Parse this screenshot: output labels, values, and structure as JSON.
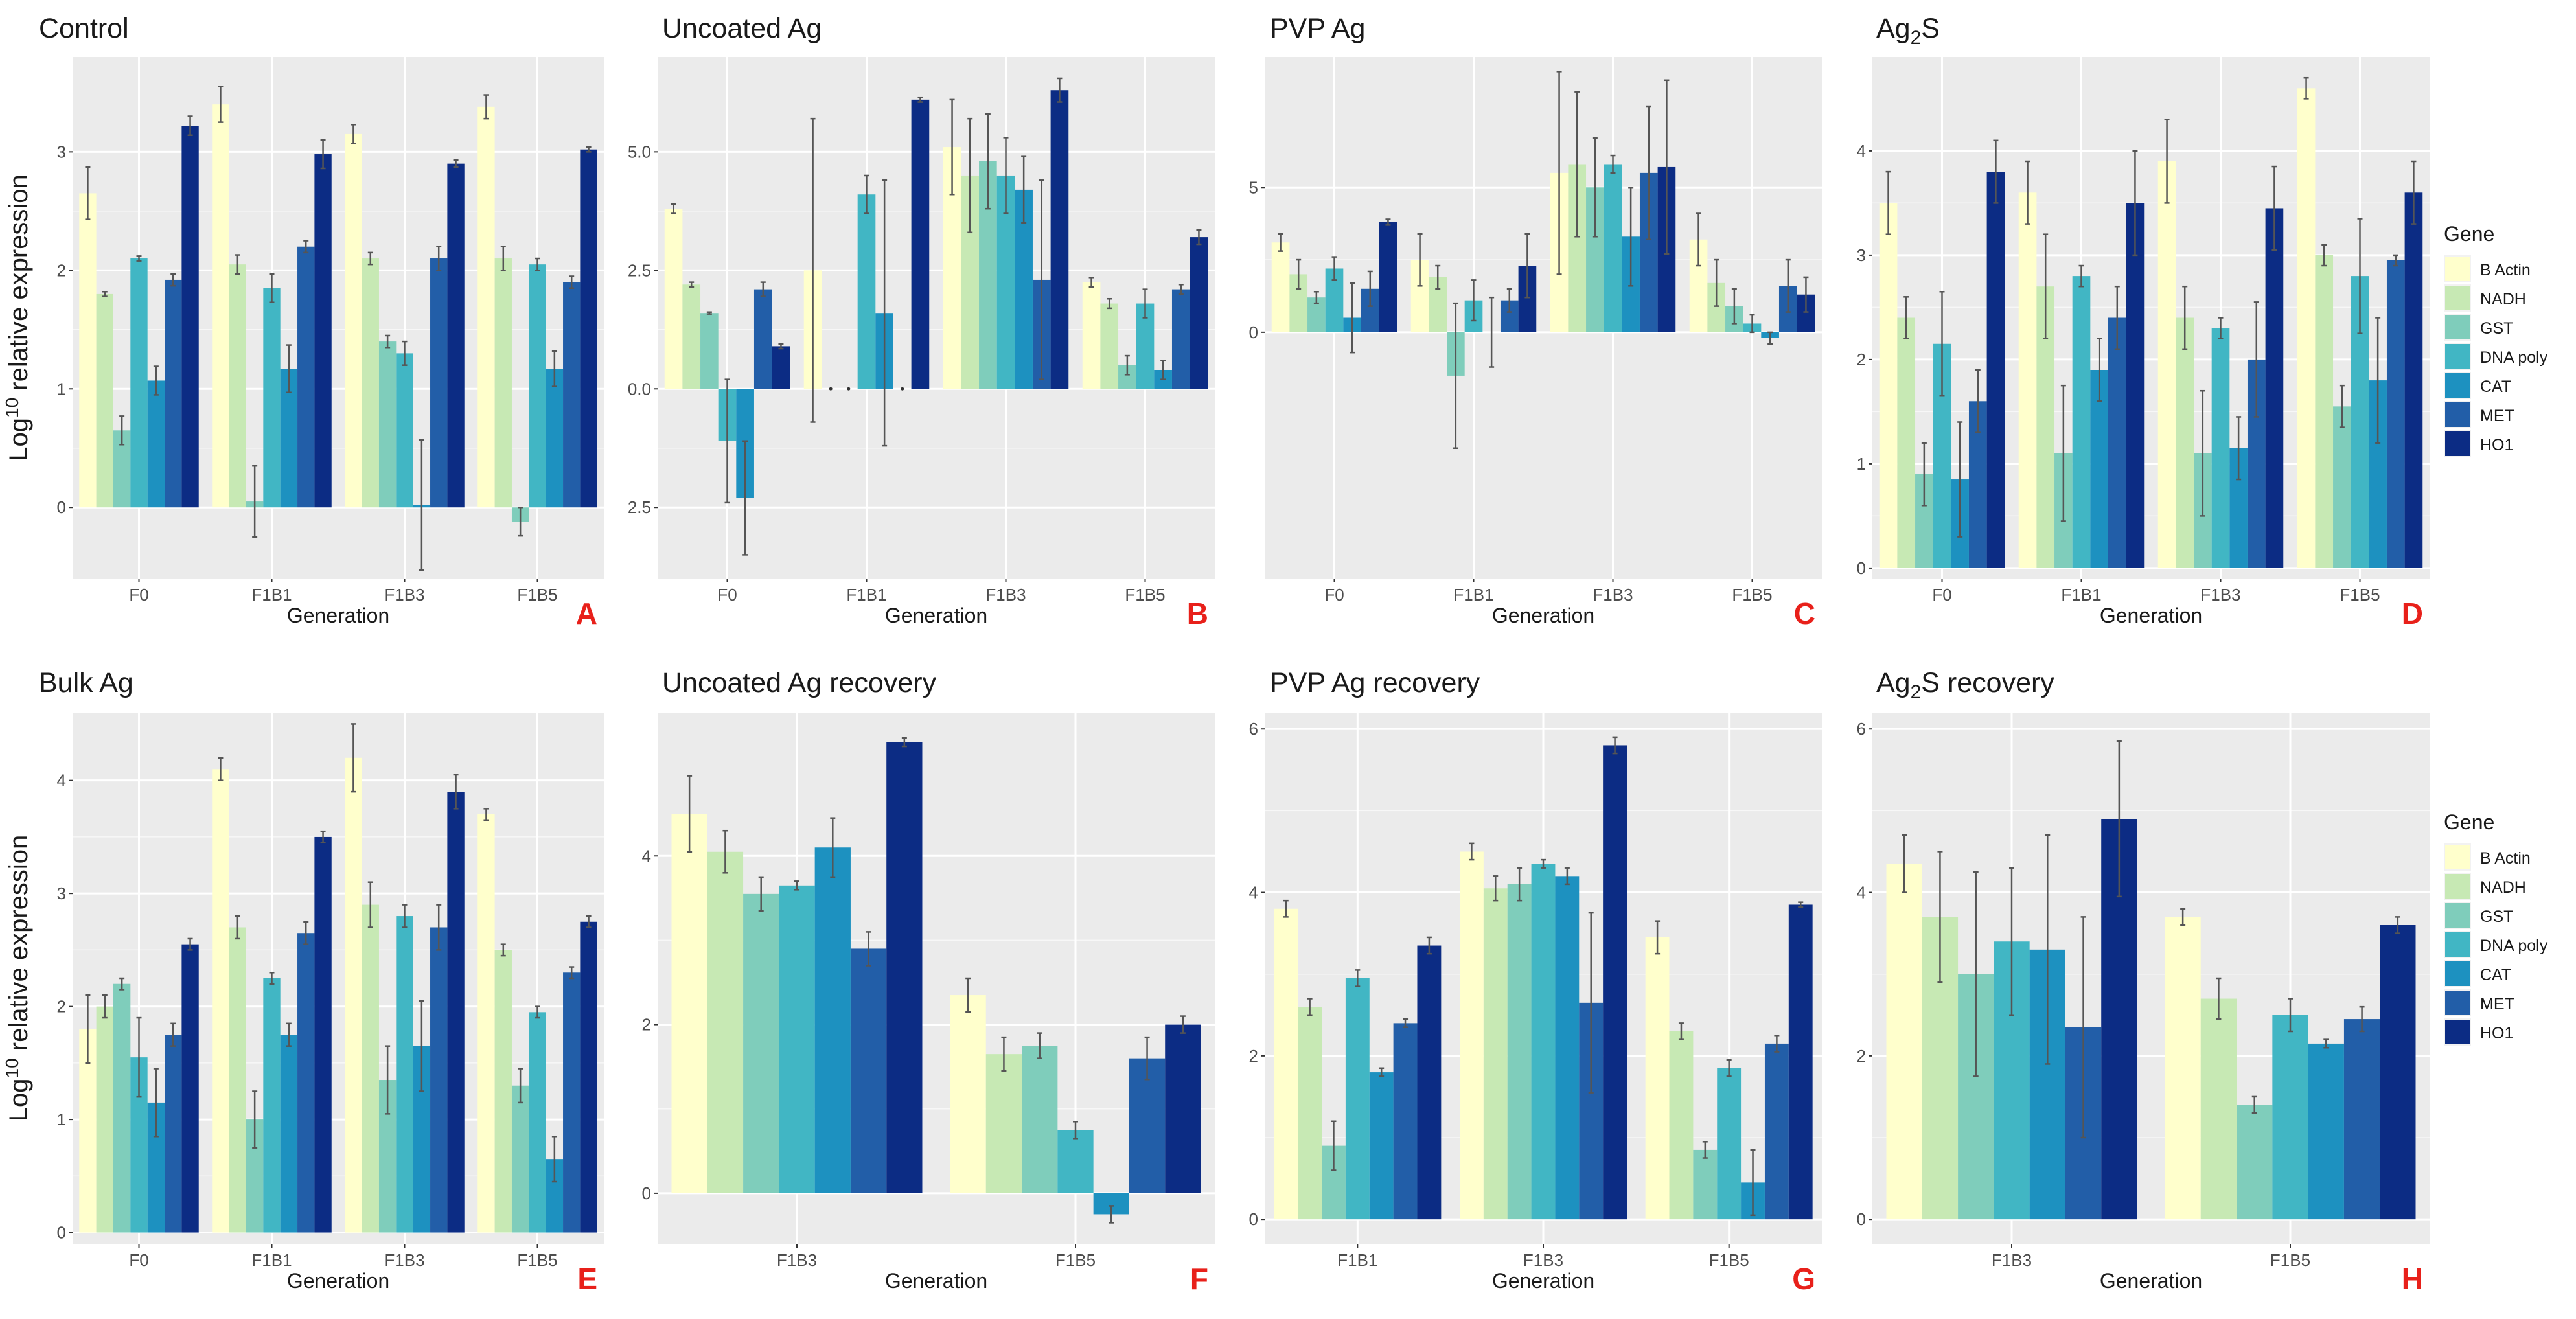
{
  "y_axis_label": {
    "prefix": "Log",
    "sup": "10",
    "rest": " relative expression"
  },
  "legend": {
    "title": "Gene",
    "genes": [
      "B Actin",
      "NADH",
      "GST",
      "DNA poly",
      "CAT",
      "MET",
      "HO1"
    ],
    "colors": [
      "#ffffcc",
      "#c7e9b4",
      "#7fcdbb",
      "#41b6c4",
      "#1d91c0",
      "#225ea8",
      "#0c2c84"
    ]
  },
  "chart_data": [
    {
      "type": "bar",
      "letter": "A",
      "title": "Control",
      "xlabel": "Generation",
      "ylabel": "Log10 relative expression",
      "categories": [
        "F0",
        "F1B1",
        "F1B3",
        "F1B5"
      ],
      "ylim": [
        -0.6,
        3.8
      ],
      "yticks": [
        0,
        1,
        2,
        3
      ],
      "ytick_labels": [
        "0",
        "1",
        "2",
        "3"
      ],
      "series": [
        {
          "name": "B Actin",
          "values": [
            2.65,
            3.4,
            3.15,
            3.38
          ],
          "errors": [
            0.22,
            0.15,
            0.08,
            0.1
          ]
        },
        {
          "name": "NADH",
          "values": [
            1.8,
            2.05,
            2.1,
            2.1
          ],
          "errors": [
            0.02,
            0.08,
            0.05,
            0.1
          ]
        },
        {
          "name": "GST",
          "values": [
            0.65,
            0.05,
            1.4,
            -0.12
          ],
          "errors": [
            0.12,
            0.3,
            0.05,
            0.12
          ]
        },
        {
          "name": "DNA poly",
          "values": [
            2.1,
            1.85,
            1.3,
            2.05
          ],
          "errors": [
            0.02,
            0.12,
            0.1,
            0.05
          ]
        },
        {
          "name": "CAT",
          "values": [
            1.07,
            1.17,
            0.02,
            1.17
          ],
          "errors": [
            0.12,
            0.2,
            0.55,
            0.15
          ]
        },
        {
          "name": "MET",
          "values": [
            1.92,
            2.2,
            2.1,
            1.9
          ],
          "errors": [
            0.05,
            0.05,
            0.1,
            0.05
          ]
        },
        {
          "name": "HO1",
          "values": [
            3.22,
            2.98,
            2.9,
            3.02
          ],
          "errors": [
            0.08,
            0.12,
            0.03,
            0.02
          ]
        }
      ]
    },
    {
      "type": "bar",
      "letter": "B",
      "title": "Uncoated Ag",
      "xlabel": "Generation",
      "ylabel": "",
      "categories": [
        "F0",
        "F1B1",
        "F1B3",
        "F1B5"
      ],
      "ylim": [
        -4,
        7
      ],
      "yticks": [
        -2.5,
        0,
        2.5,
        5
      ],
      "ytick_labels": [
        "2.5",
        "0.0",
        "2.5",
        "5.0"
      ],
      "series": [
        {
          "name": "B Actin",
          "values": [
            3.8,
            2.5,
            5.1,
            2.25
          ],
          "errors": [
            0.1,
            3.2,
            1.0,
            0.1
          ]
        },
        {
          "name": "NADH",
          "values": [
            2.2,
            0.0,
            4.5,
            1.8
          ],
          "errors": [
            0.05,
            0.0,
            1.2,
            0.1
          ]
        },
        {
          "name": "GST",
          "values": [
            1.6,
            0.0,
            4.8,
            0.5
          ],
          "errors": [
            0.02,
            0.0,
            1.0,
            0.2
          ]
        },
        {
          "name": "DNA poly",
          "values": [
            -1.1,
            4.1,
            4.5,
            1.8
          ],
          "errors": [
            1.3,
            0.4,
            0.8,
            0.3
          ]
        },
        {
          "name": "CAT",
          "values": [
            -2.3,
            1.6,
            4.2,
            0.4
          ],
          "errors": [
            1.2,
            2.8,
            0.7,
            0.2
          ]
        },
        {
          "name": "MET",
          "values": [
            2.1,
            0.0,
            2.3,
            2.1
          ],
          "errors": [
            0.15,
            0.0,
            2.1,
            0.1
          ]
        },
        {
          "name": "HO1",
          "values": [
            0.9,
            6.1,
            6.3,
            3.2
          ],
          "errors": [
            0.05,
            0.05,
            0.25,
            0.15
          ]
        }
      ]
    },
    {
      "type": "bar",
      "letter": "C",
      "title": "PVP Ag",
      "xlabel": "Generation",
      "ylabel": "",
      "categories": [
        "F0",
        "F1B1",
        "F1B3",
        "F1B5"
      ],
      "ylim": [
        -8.5,
        9.5
      ],
      "yticks": [
        0,
        5
      ],
      "ytick_labels": [
        "0",
        "5"
      ],
      "series": [
        {
          "name": "B Actin",
          "values": [
            3.1,
            2.5,
            5.5,
            3.2
          ],
          "errors": [
            0.3,
            0.9,
            3.5,
            0.9
          ]
        },
        {
          "name": "NADH",
          "values": [
            2.0,
            1.9,
            5.8,
            1.7
          ],
          "errors": [
            0.5,
            0.4,
            2.5,
            0.8
          ]
        },
        {
          "name": "GST",
          "values": [
            1.2,
            -1.5,
            5.0,
            0.9
          ],
          "errors": [
            0.2,
            2.5,
            1.7,
            0.6
          ]
        },
        {
          "name": "DNA poly",
          "values": [
            2.2,
            1.1,
            5.8,
            0.3
          ],
          "errors": [
            0.4,
            0.7,
            0.3,
            0.3
          ]
        },
        {
          "name": "CAT",
          "values": [
            0.5,
            0.0,
            3.3,
            -0.2
          ],
          "errors": [
            1.2,
            1.2,
            1.7,
            0.2
          ]
        },
        {
          "name": "MET",
          "values": [
            1.5,
            1.1,
            5.5,
            1.6
          ],
          "errors": [
            0.6,
            0.4,
            2.3,
            0.9
          ]
        },
        {
          "name": "HO1",
          "values": [
            3.8,
            2.3,
            5.7,
            1.3
          ],
          "errors": [
            0.1,
            1.1,
            3.0,
            0.6
          ]
        }
      ]
    },
    {
      "type": "bar",
      "letter": "D",
      "title": "Ag2S",
      "title_main": "Ag",
      "title_sub": "2",
      "title_rest": "S",
      "xlabel": "Generation",
      "ylabel": "",
      "categories": [
        "F0",
        "F1B1",
        "F1B3",
        "F1B5"
      ],
      "ylim": [
        -0.1,
        4.9
      ],
      "yticks": [
        0,
        1,
        2,
        3,
        4
      ],
      "ytick_labels": [
        "0",
        "1",
        "2",
        "3",
        "4"
      ],
      "series": [
        {
          "name": "B Actin",
          "values": [
            3.5,
            3.6,
            3.9,
            4.6
          ],
          "errors": [
            0.3,
            0.3,
            0.4,
            0.1
          ]
        },
        {
          "name": "NADH",
          "values": [
            2.4,
            2.7,
            2.4,
            3.0
          ],
          "errors": [
            0.2,
            0.5,
            0.3,
            0.1
          ]
        },
        {
          "name": "GST",
          "values": [
            0.9,
            1.1,
            1.1,
            1.55
          ],
          "errors": [
            0.3,
            0.65,
            0.6,
            0.2
          ]
        },
        {
          "name": "DNA poly",
          "values": [
            2.15,
            2.8,
            2.3,
            2.8
          ],
          "errors": [
            0.5,
            0.1,
            0.1,
            0.55
          ]
        },
        {
          "name": "CAT",
          "values": [
            0.85,
            1.9,
            1.15,
            1.8
          ],
          "errors": [
            0.55,
            0.3,
            0.3,
            0.6
          ]
        },
        {
          "name": "MET",
          "values": [
            1.6,
            2.4,
            2.0,
            2.95
          ],
          "errors": [
            0.3,
            0.3,
            0.55,
            0.05
          ]
        },
        {
          "name": "HO1",
          "values": [
            3.8,
            3.5,
            3.45,
            3.6
          ],
          "errors": [
            0.3,
            0.5,
            0.4,
            0.3
          ]
        }
      ]
    },
    {
      "type": "bar",
      "letter": "E",
      "title": "Bulk Ag",
      "xlabel": "Generation",
      "ylabel": "Log10 relative expression",
      "categories": [
        "F0",
        "F1B1",
        "F1B3",
        "F1B5"
      ],
      "ylim": [
        -0.1,
        4.6
      ],
      "yticks": [
        0,
        1,
        2,
        3,
        4
      ],
      "ytick_labels": [
        "0",
        "1",
        "2",
        "3",
        "4"
      ],
      "series": [
        {
          "name": "B Actin",
          "values": [
            1.8,
            4.1,
            4.2,
            3.7
          ],
          "errors": [
            0.3,
            0.1,
            0.3,
            0.05
          ]
        },
        {
          "name": "NADH",
          "values": [
            2.0,
            2.7,
            2.9,
            2.5
          ],
          "errors": [
            0.1,
            0.1,
            0.2,
            0.05
          ]
        },
        {
          "name": "GST",
          "values": [
            2.2,
            1.0,
            1.35,
            1.3
          ],
          "errors": [
            0.05,
            0.25,
            0.3,
            0.15
          ]
        },
        {
          "name": "DNA poly",
          "values": [
            1.55,
            2.25,
            2.8,
            1.95
          ],
          "errors": [
            0.35,
            0.05,
            0.1,
            0.05
          ]
        },
        {
          "name": "CAT",
          "values": [
            1.15,
            1.75,
            1.65,
            0.65
          ],
          "errors": [
            0.3,
            0.1,
            0.4,
            0.2
          ]
        },
        {
          "name": "MET",
          "values": [
            1.75,
            2.65,
            2.7,
            2.3
          ],
          "errors": [
            0.1,
            0.1,
            0.2,
            0.05
          ]
        },
        {
          "name": "HO1",
          "values": [
            2.55,
            3.5,
            3.9,
            2.75
          ],
          "errors": [
            0.05,
            0.05,
            0.15,
            0.05
          ]
        }
      ]
    },
    {
      "type": "bar",
      "letter": "F",
      "title": "Uncoated Ag recovery",
      "xlabel": "Generation",
      "ylabel": "",
      "categories": [
        "F1B3",
        "F1B5"
      ],
      "ylim": [
        -0.6,
        5.7
      ],
      "yticks": [
        0,
        2,
        4
      ],
      "ytick_labels": [
        "0",
        "2",
        "4"
      ],
      "series": [
        {
          "name": "B Actin",
          "values": [
            4.5,
            2.35
          ],
          "errors": [
            0.45,
            0.2
          ]
        },
        {
          "name": "NADH",
          "values": [
            4.05,
            1.65
          ],
          "errors": [
            0.25,
            0.2
          ]
        },
        {
          "name": "GST",
          "values": [
            3.55,
            1.75
          ],
          "errors": [
            0.2,
            0.15
          ]
        },
        {
          "name": "DNA poly",
          "values": [
            3.65,
            0.75
          ],
          "errors": [
            0.05,
            0.1
          ]
        },
        {
          "name": "CAT",
          "values": [
            4.1,
            -0.25
          ],
          "errors": [
            0.35,
            0.1
          ]
        },
        {
          "name": "MET",
          "values": [
            2.9,
            1.6
          ],
          "errors": [
            0.2,
            0.25
          ]
        },
        {
          "name": "HO1",
          "values": [
            5.35,
            2.0
          ],
          "errors": [
            0.05,
            0.1
          ]
        }
      ]
    },
    {
      "type": "bar",
      "letter": "G",
      "title": "PVP Ag recovery",
      "xlabel": "Generation",
      "ylabel": "",
      "categories": [
        "F1B1",
        "F1B3",
        "F1B5"
      ],
      "ylim": [
        -0.3,
        6.2
      ],
      "yticks": [
        0,
        2,
        4,
        6
      ],
      "ytick_labels": [
        "0",
        "2",
        "4",
        "6"
      ],
      "series": [
        {
          "name": "B Actin",
          "values": [
            3.8,
            4.5,
            3.45
          ],
          "errors": [
            0.1,
            0.1,
            0.2
          ]
        },
        {
          "name": "NADH",
          "values": [
            2.6,
            4.05,
            2.3
          ],
          "errors": [
            0.1,
            0.15,
            0.1
          ]
        },
        {
          "name": "GST",
          "values": [
            0.9,
            4.1,
            0.85
          ],
          "errors": [
            0.3,
            0.2,
            0.1
          ]
        },
        {
          "name": "DNA poly",
          "values": [
            2.95,
            4.35,
            1.85
          ],
          "errors": [
            0.1,
            0.05,
            0.1
          ]
        },
        {
          "name": "CAT",
          "values": [
            1.8,
            4.2,
            0.45
          ],
          "errors": [
            0.05,
            0.1,
            0.4
          ]
        },
        {
          "name": "MET",
          "values": [
            2.4,
            2.65,
            2.15
          ],
          "errors": [
            0.05,
            1.1,
            0.1
          ]
        },
        {
          "name": "HO1",
          "values": [
            3.35,
            5.8,
            3.85
          ],
          "errors": [
            0.1,
            0.1,
            0.03
          ]
        }
      ]
    },
    {
      "type": "bar",
      "letter": "H",
      "title": "Ag2S recovery",
      "title_main": "Ag",
      "title_sub": "2",
      "title_rest": "S recovery",
      "xlabel": "Generation",
      "ylabel": "",
      "categories": [
        "F1B3",
        "F1B5"
      ],
      "ylim": [
        -0.3,
        6.2
      ],
      "yticks": [
        0,
        2,
        4,
        6
      ],
      "ytick_labels": [
        "0",
        "2",
        "4",
        "6"
      ],
      "series": [
        {
          "name": "B Actin",
          "values": [
            4.35,
            3.7
          ],
          "errors": [
            0.35,
            0.1
          ]
        },
        {
          "name": "NADH",
          "values": [
            3.7,
            2.7
          ],
          "errors": [
            0.8,
            0.25
          ]
        },
        {
          "name": "GST",
          "values": [
            3.0,
            1.4
          ],
          "errors": [
            1.25,
            0.1
          ]
        },
        {
          "name": "DNA poly",
          "values": [
            3.4,
            2.5
          ],
          "errors": [
            0.9,
            0.2
          ]
        },
        {
          "name": "CAT",
          "values": [
            3.3,
            2.15
          ],
          "errors": [
            1.4,
            0.05
          ]
        },
        {
          "name": "MET",
          "values": [
            2.35,
            2.45
          ],
          "errors": [
            1.35,
            0.15
          ]
        },
        {
          "name": "HO1",
          "values": [
            4.9,
            3.6
          ],
          "errors": [
            0.95,
            0.1
          ]
        }
      ]
    }
  ]
}
